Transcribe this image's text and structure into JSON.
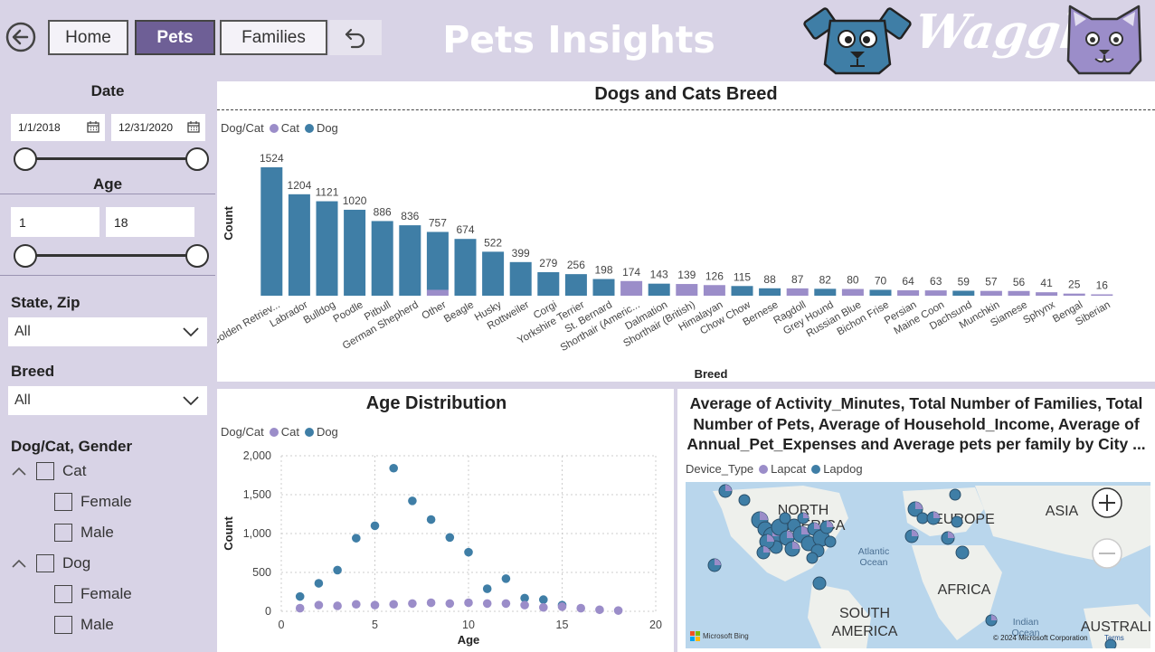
{
  "header": {
    "title": "Pets Insights",
    "brand": "Waggle",
    "nav": [
      {
        "label": "Home",
        "active": false
      },
      {
        "label": "Pets",
        "active": true
      },
      {
        "label": "Families",
        "active": false
      }
    ]
  },
  "filters": {
    "date": {
      "title": "Date",
      "start": "1/1/2018",
      "end": "12/31/2020"
    },
    "age": {
      "title": "Age",
      "min": "1",
      "max": "18"
    },
    "state_zip": {
      "label": "State, Zip",
      "value": "All"
    },
    "breed": {
      "label": "Breed",
      "value": "All"
    },
    "dogcat_gender": {
      "label": "Dog/Cat, Gender",
      "groups": [
        {
          "label": "Cat",
          "children": [
            "Female",
            "Male"
          ]
        },
        {
          "label": "Dog",
          "children": [
            "Female",
            "Male"
          ]
        }
      ]
    }
  },
  "breed_panel": {
    "title": "Dogs and Cats Breed",
    "legend_title": "Dog/Cat",
    "legend": [
      "Cat",
      "Dog"
    ]
  },
  "age_panel": {
    "title": "Age Distribution",
    "legend_title": "Dog/Cat",
    "legend": [
      "Cat",
      "Dog"
    ]
  },
  "map_panel": {
    "title_lines": [
      "Average of Activity_Minutes, Total Number of Families, Total",
      "Number of Pets, Average of Household_Income, Average of",
      "Annual_Pet_Expenses and Average pets per family by City ..."
    ],
    "legend_title": "Device_Type",
    "legend": [
      "Lapcat",
      "Lapdog"
    ],
    "labels": {
      "north1": "NORTH",
      "north2": "AMERICA",
      "europe": "EUROPE",
      "asia": "ASIA",
      "atlantic1": "Atlantic",
      "atlantic2": "Ocean",
      "africa": "AFRICA",
      "south1": "SOUTH",
      "south2": "AMERICA",
      "indian1": "Indian",
      "indian2": "Ocean",
      "australia": "AUSTRALI"
    },
    "bing": "Microsoft Bing",
    "copyright": "© 2024 Microsoft Corporation",
    "terms": "Terms"
  },
  "colors": {
    "cat": "#9b8dc9",
    "dog": "#3f7ea6",
    "accent": "#6e5f96",
    "background": "#d8d3e6"
  },
  "chart_data": [
    {
      "type": "bar",
      "title": "Dogs and Cats Breed",
      "xlabel": "Breed",
      "ylabel": "Count",
      "stacked": true,
      "categories": [
        "Golden Retriev...",
        "Labrador",
        "Bulldog",
        "Poodle",
        "Pitbull",
        "German Shepherd",
        "Other",
        "Beagle",
        "Husky",
        "Rottweiler",
        "Corgi",
        "Yorkshire Terrier",
        "St. Bernard",
        "Shorthair (Americ...",
        "Dalmation",
        "Shorthair (British)",
        "Himalayan",
        "Chow Chow",
        "Bernese",
        "Ragdoll",
        "Grey Hound",
        "Russian Blue",
        "Bichon Frise",
        "Persian",
        "Maine Coon",
        "Dachsund",
        "Munchkin",
        "Siamese",
        "Sphynx",
        "Bengal",
        "Siberian"
      ],
      "totals": [
        1524,
        1204,
        1121,
        1020,
        886,
        836,
        757,
        674,
        522,
        399,
        279,
        256,
        198,
        174,
        143,
        139,
        126,
        115,
        88,
        87,
        82,
        80,
        70,
        64,
        63,
        59,
        57,
        56,
        41,
        25,
        16
      ],
      "series": [
        {
          "name": "Cat",
          "values": [
            0,
            0,
            0,
            0,
            0,
            0,
            70,
            0,
            0,
            0,
            0,
            0,
            0,
            174,
            0,
            139,
            126,
            0,
            0,
            87,
            0,
            80,
            0,
            64,
            63,
            0,
            57,
            56,
            41,
            25,
            16
          ]
        },
        {
          "name": "Dog",
          "values": [
            1524,
            1204,
            1121,
            1020,
            886,
            836,
            687,
            674,
            522,
            399,
            279,
            256,
            198,
            0,
            143,
            0,
            0,
            115,
            88,
            0,
            82,
            0,
            70,
            0,
            0,
            59,
            0,
            0,
            0,
            0,
            0
          ]
        }
      ],
      "legend": "top-left"
    },
    {
      "type": "scatter",
      "title": "Age Distribution",
      "xlabel": "Age",
      "ylabel": "Count",
      "xlim": [
        0,
        20
      ],
      "ylim": [
        0,
        2000
      ],
      "xticks": [
        "0",
        "5",
        "10",
        "15",
        "20"
      ],
      "yticks": [
        "0",
        "500",
        "1,000",
        "1,500",
        "2,000"
      ],
      "grid": true,
      "series": [
        {
          "name": "Dog",
          "x": [
            1,
            2,
            3,
            4,
            5,
            6,
            7,
            8,
            9,
            10,
            11,
            12,
            13,
            14,
            15
          ],
          "y": [
            190,
            360,
            530,
            940,
            1100,
            1840,
            1420,
            1180,
            950,
            760,
            290,
            420,
            170,
            150,
            80
          ]
        },
        {
          "name": "Cat",
          "x": [
            1,
            2,
            3,
            4,
            5,
            6,
            7,
            8,
            9,
            10,
            11,
            12,
            13,
            14,
            15,
            16,
            17,
            18
          ],
          "y": [
            40,
            80,
            70,
            90,
            80,
            90,
            100,
            110,
            100,
            110,
            100,
            100,
            80,
            50,
            60,
            40,
            20,
            10
          ]
        }
      ],
      "legend": "top-left"
    }
  ]
}
